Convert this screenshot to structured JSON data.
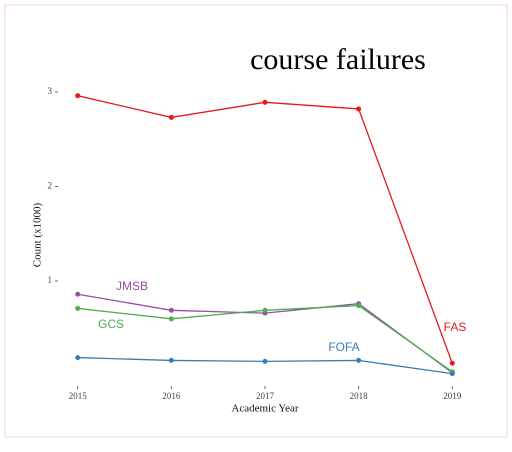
{
  "chart_data": {
    "type": "line",
    "title": "course failures",
    "x_label": "Academic Year",
    "y_label": "Count (x1000)",
    "x": [
      2015,
      2016,
      2017,
      2018,
      2019
    ],
    "xlim": [
      2014.8,
      2019.2
    ],
    "xticks": [
      2015,
      2016,
      2017,
      2018,
      2019
    ],
    "ylim": [
      -0.1,
      3.2
    ],
    "yticks": [
      1,
      2,
      3
    ],
    "grid": false,
    "legend": "direct-labels",
    "series": [
      {
        "name": "FAS",
        "color": "#e41a1c",
        "values": [
          2.96,
          2.73,
          2.89,
          2.82,
          0.13
        ]
      },
      {
        "name": "JMSB",
        "color": "#984ea3",
        "values": [
          0.86,
          0.69,
          0.66,
          0.76,
          0.03
        ]
      },
      {
        "name": "GCS",
        "color": "#4daf4a",
        "values": [
          0.71,
          0.6,
          0.69,
          0.74,
          0.04
        ]
      },
      {
        "name": "FOFA",
        "color": "#377eb8",
        "values": [
          0.19,
          0.16,
          0.15,
          0.16,
          0.02
        ]
      }
    ]
  }
}
